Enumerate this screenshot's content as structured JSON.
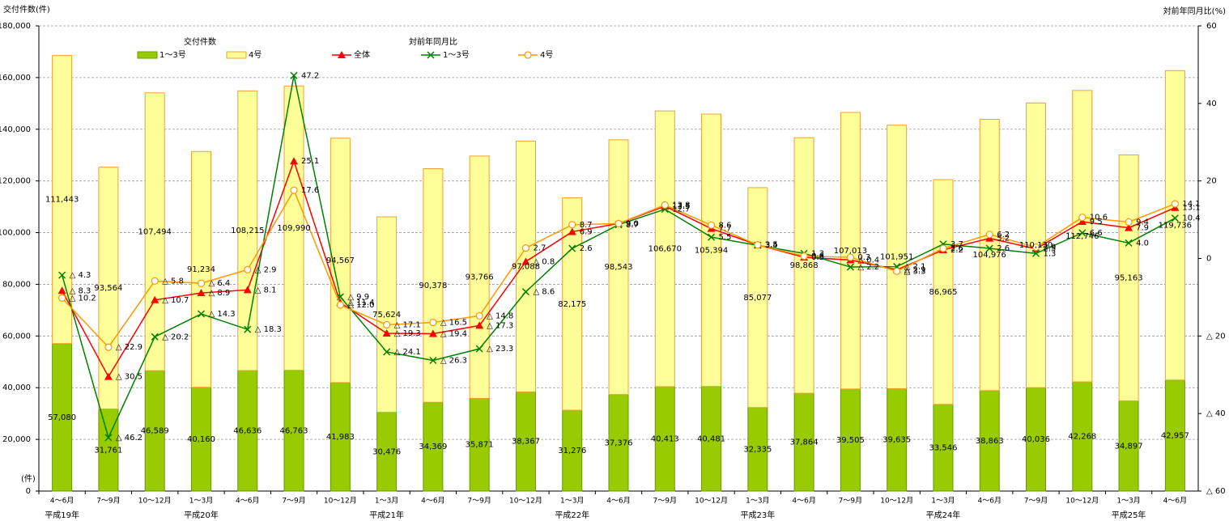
{
  "chart_data": {
    "type": "combo",
    "y_axis_label": "交付件数(件)",
    "y2_axis_label": "対前年同月比(%)",
    "y_unit_label": "(件)",
    "legend_titles": [
      "交付件数",
      "対前年同月比"
    ],
    "categories": [
      "4〜6月",
      "7〜9月",
      "10〜12月",
      "1〜3月",
      "4〜6月",
      "7〜9月",
      "10〜12月",
      "1〜3月",
      "4〜6月",
      "7〜9月",
      "10〜12月",
      "1〜3月",
      "4〜6月",
      "7〜9月",
      "10〜12月",
      "1〜3月",
      "4〜6月",
      "7〜9月",
      "10〜12月",
      "1〜3月",
      "4〜6月",
      "7〜9月",
      "10〜12月",
      "1〜3月",
      "4〜6月"
    ],
    "year_groups": [
      "平成19年",
      null,
      null,
      "平成20年",
      null,
      null,
      null,
      "平成21年",
      null,
      null,
      null,
      "平成22年",
      null,
      null,
      null,
      "平成23年",
      null,
      null,
      null,
      "平成24年",
      null,
      null,
      null,
      "平成25年",
      null
    ],
    "ylim": [
      0,
      180000
    ],
    "yticks": [
      0,
      {
        "value": 20000,
        "label": "20,000"
      },
      {
        "value": 40000,
        "label": "40,000"
      },
      {
        "value": 60000,
        "label": "60,000"
      },
      {
        "value": 80000,
        "label": "80,000"
      },
      {
        "value": 100000,
        "label": "100,000"
      },
      {
        "value": 120000,
        "label": "120,000"
      },
      {
        "value": 140000,
        "label": "140,000"
      },
      {
        "value": 160000,
        "label": "160,000"
      },
      {
        "value": 180000,
        "label": "180,000"
      }
    ],
    "y2lim": [
      -60,
      60
    ],
    "y2ticks": [
      {
        "value": -60,
        "label": "△ 60"
      },
      {
        "value": -40,
        "label": "△ 40"
      },
      {
        "value": -20,
        "label": "△ 20"
      },
      0,
      20,
      40,
      60
    ],
    "grid": true,
    "series": [
      {
        "name": "1〜3号",
        "type": "bar",
        "color": "#99cc00",
        "edge_color": "#669900",
        "values": [
          57080,
          31761,
          46589,
          40160,
          46636,
          46763,
          41983,
          30476,
          34369,
          35871,
          38367,
          31276,
          37376,
          40413,
          40481,
          32335,
          37864,
          39505,
          39635,
          33546,
          38863,
          40036,
          42268,
          34897,
          42957
        ],
        "value_labels": [
          "57,080",
          "31,761",
          "46,589",
          "40,160",
          "46,636",
          "46,763",
          "41,983",
          "30,476",
          "34,369",
          "35,871",
          "38,367",
          "31,276",
          "37,376",
          "40,413",
          "40,481",
          "32,335",
          "37,864",
          "39,505",
          "39,635",
          "33,546",
          "38,863",
          "40,036",
          "42,268",
          "34,897",
          "42,957"
        ]
      },
      {
        "name": "4号",
        "type": "bar",
        "color": "#ffff99",
        "edge_color": "#f0a030",
        "values": [
          111443,
          93564,
          107494,
          91234,
          108215,
          109990,
          94567,
          75624,
          90378,
          93766,
          97088,
          82175,
          98543,
          106670,
          105394,
          85077,
          98868,
          107013,
          101951,
          86965,
          104976,
          110130,
          112746,
          95163,
          119736
        ],
        "value_labels": [
          "111,443",
          "93,564",
          "107,494",
          "91,234",
          "108,215",
          "109,990",
          "94,567",
          "75,624",
          "90,378",
          "93,766",
          "97,088",
          "82,175",
          "98,543",
          "106,670",
          "105,394",
          "85,077",
          "98,868",
          "107,013",
          "101,951",
          "86,965",
          "104,976",
          "110,130",
          "112,746",
          "95,163",
          "119,736"
        ]
      },
      {
        "name": "全体",
        "type": "line",
        "axis": "y2",
        "color": "#ff0000",
        "marker": "triangle",
        "values": [
          -8.3,
          -30.5,
          -10.7,
          -8.9,
          -8.1,
          25.1,
          -11.4,
          -19.3,
          -19.4,
          -17.3,
          -0.8,
          6.9,
          9.0,
          13.5,
          7.7,
          3.5,
          0.3,
          -0.4,
          -2.9,
          2.2,
          5.2,
          2.5,
          9.5,
          7.9,
          13.1
        ],
        "value_labels": [
          "△ 8.3",
          "△ 30.5",
          "△ 10.7",
          "△ 8.9",
          "△ 8.1",
          "25.1",
          "△ 11.4",
          "△ 19.3",
          "△ 19.4",
          "△ 17.3",
          "△ 0.8",
          "6.9",
          "9.0",
          "13.5",
          "7.7",
          "3.5",
          "0.3",
          "△ 0.4",
          "△ 2.9",
          "2.2",
          "5.2",
          "2.5",
          "9.5",
          "7.9",
          "13.1"
        ]
      },
      {
        "name": "1〜3号",
        "type": "line",
        "axis": "y2",
        "color": "#008000",
        "marker": "x",
        "values": [
          -4.3,
          -46.2,
          -20.2,
          -14.3,
          -18.3,
          47.2,
          -9.9,
          -24.1,
          -26.3,
          -23.3,
          -8.6,
          2.6,
          8.7,
          12.7,
          5.5,
          3.4,
          1.3,
          -2.2,
          -2.1,
          3.7,
          2.6,
          1.3,
          6.6,
          4.0,
          10.4
        ],
        "value_labels": [
          "△ 4.3",
          "△ 46.2",
          "△ 20.2",
          "△ 14.3",
          "△ 18.3",
          "47.2",
          "△ 9.9",
          "△ 24.1",
          "△ 26.3",
          "△ 23.3",
          "△ 8.6",
          "2.6",
          "8.7",
          "12.7",
          "5.5",
          "3.4",
          "1.3",
          "△ 2.2",
          "△ 2.1",
          "3.7",
          "2.6",
          "1.3",
          "6.6",
          "4.0",
          "10.4"
        ]
      },
      {
        "name": "4号",
        "type": "line",
        "axis": "y2",
        "color": "#ff9900",
        "marker": "circle",
        "values": [
          -10.2,
          -22.9,
          -5.8,
          -6.4,
          -2.9,
          17.6,
          -12.0,
          -17.1,
          -16.5,
          -14.8,
          2.7,
          8.7,
          9.0,
          13.8,
          8.6,
          3.5,
          0.6,
          0.3,
          -3.3,
          2.6,
          6.2,
          2.9,
          10.6,
          9.4,
          14.1
        ],
        "value_labels": [
          "△ 10.2",
          "△ 22.9",
          "△ 5.8",
          "△ 6.4",
          "△ 2.9",
          "17.6",
          "△ 12.0",
          "△ 17.1",
          "△ 16.5",
          "△ 14.8",
          "2.7",
          "8.7",
          "9.0",
          "13.8",
          "8.6",
          "3.5",
          "0.6",
          "0.3",
          "△ 3.3",
          "2.6",
          "6.2",
          "2.9",
          "10.6",
          "9.4",
          "14.1"
        ]
      }
    ]
  }
}
